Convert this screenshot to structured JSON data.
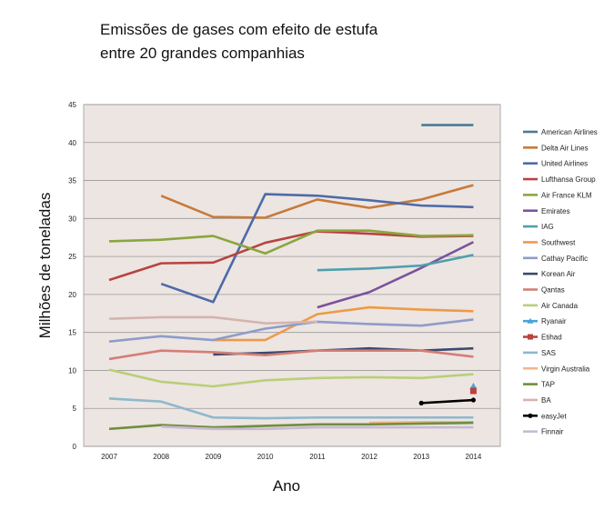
{
  "chart_data": {
    "type": "line",
    "title": "Emissões de gases com efeito de estufa\nentre 20 grandes companhias",
    "xlabel": "Ano",
    "ylabel": "Milhões de toneladas",
    "x": [
      2007,
      2008,
      2009,
      2010,
      2011,
      2012,
      2013,
      2014
    ],
    "ylim": [
      0,
      45
    ],
    "yticks": [
      0,
      5,
      10,
      15,
      20,
      25,
      30,
      35,
      40,
      45
    ],
    "grid": "horizontal",
    "legend_position": "right",
    "background": "#ece5e2",
    "series": [
      {
        "name": "American Airlines",
        "color": "#4a7a96",
        "values": [
          null,
          null,
          null,
          null,
          null,
          null,
          42.3,
          42.3
        ]
      },
      {
        "name": "Delta Air Lines",
        "color": "#c77a3a",
        "values": [
          null,
          33.0,
          30.2,
          30.1,
          32.5,
          31.4,
          32.5,
          34.4
        ]
      },
      {
        "name": "United Airlines",
        "color": "#4e6aa8",
        "values": [
          null,
          21.4,
          19.0,
          33.2,
          33.0,
          32.4,
          31.7,
          31.5
        ]
      },
      {
        "name": "Lufthansa Group",
        "color": "#b8433f",
        "values": [
          21.9,
          24.1,
          24.2,
          26.8,
          28.3,
          28.0,
          27.6,
          27.7
        ]
      },
      {
        "name": "Air France KLM",
        "color": "#8aa63e",
        "values": [
          27.0,
          27.2,
          27.7,
          25.4,
          28.4,
          28.4,
          27.7,
          27.8
        ]
      },
      {
        "name": "Emirates",
        "color": "#7a529c",
        "values": [
          null,
          null,
          null,
          null,
          18.3,
          20.3,
          23.5,
          26.9
        ]
      },
      {
        "name": "IAG",
        "color": "#4f9fae",
        "values": [
          null,
          null,
          null,
          null,
          23.2,
          23.4,
          23.8,
          25.2
        ]
      },
      {
        "name": "Southwest",
        "color": "#ee9a47",
        "values": [
          null,
          null,
          14.0,
          14.0,
          17.4,
          18.3,
          18.0,
          17.8
        ]
      },
      {
        "name": "Cathay Pacific",
        "color": "#8e9cc8",
        "values": [
          13.8,
          14.5,
          14.0,
          15.5,
          16.4,
          16.1,
          15.9,
          16.7
        ]
      },
      {
        "name": "Korean Air",
        "color": "#3a4a6e",
        "values": [
          null,
          null,
          12.1,
          12.3,
          12.6,
          12.9,
          12.6,
          12.9
        ]
      },
      {
        "name": "Qantas",
        "color": "#d47e76",
        "values": [
          11.5,
          12.6,
          12.4,
          12.0,
          12.6,
          12.6,
          12.6,
          11.8
        ]
      },
      {
        "name": "Air Canada",
        "color": "#b9cf78",
        "values": [
          10.1,
          8.5,
          7.9,
          8.7,
          9.0,
          9.1,
          9.0,
          9.5
        ]
      },
      {
        "name": "Ryanair",
        "color": "#4aa3d8",
        "values": [
          null,
          null,
          null,
          null,
          null,
          null,
          null,
          7.9
        ]
      },
      {
        "name": "Etihad",
        "color": "#b9433f",
        "values": [
          null,
          null,
          null,
          null,
          null,
          null,
          null,
          7.3
        ]
      },
      {
        "name": "SAS",
        "color": "#8fb8cc",
        "values": [
          6.3,
          5.9,
          3.8,
          3.7,
          3.8,
          3.8,
          3.8,
          3.8
        ]
      },
      {
        "name": "Virgin Australia",
        "color": "#f5b48a",
        "values": [
          null,
          null,
          null,
          null,
          null,
          3.1,
          3.2,
          3.2
        ]
      },
      {
        "name": "TAP",
        "color": "#6e8f3e",
        "values": [
          2.3,
          2.8,
          2.5,
          2.7,
          2.9,
          2.9,
          3.0,
          3.1
        ]
      },
      {
        "name": "BA",
        "color": "#d4b4b0",
        "values": [
          16.8,
          17.0,
          17.0,
          16.2,
          16.4,
          null,
          null,
          null
        ]
      },
      {
        "name": "easyJet",
        "color": "#000000",
        "values": [
          null,
          null,
          null,
          null,
          null,
          null,
          5.7,
          6.1
        ]
      },
      {
        "name": "Finnair",
        "color": "#c8b8d4",
        "values": [
          null,
          2.6,
          2.3,
          2.3,
          2.5,
          2.5,
          2.5,
          2.5
        ]
      }
    ]
  }
}
